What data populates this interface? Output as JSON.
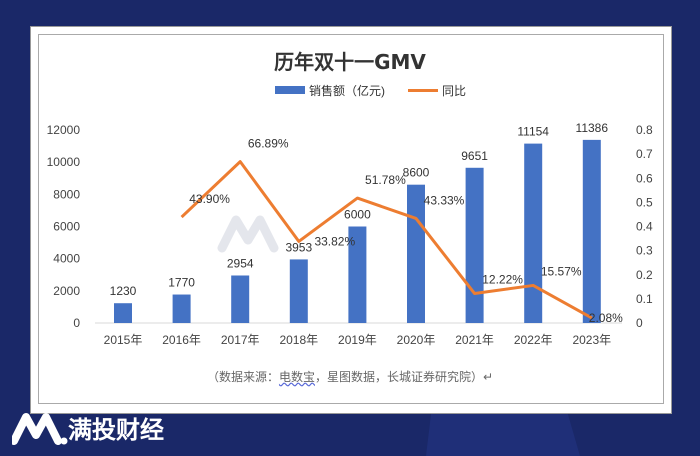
{
  "chart_data": {
    "type": "bar+line",
    "title": "历年双十一GMV",
    "categories": [
      "2015年",
      "2016年",
      "2017年",
      "2018年",
      "2019年",
      "2020年",
      "2021年",
      "2022年",
      "2023年"
    ],
    "series": [
      {
        "name": "销售额（亿元)",
        "type": "bar",
        "axis": "left",
        "color": "#4472c4",
        "values": [
          1230,
          1770,
          2954,
          3953,
          6000,
          8600,
          9651,
          11154,
          11386
        ],
        "labels": [
          "1230",
          "1770",
          "2954",
          "3953",
          "6000",
          "8600",
          "9651",
          "11154",
          "11386"
        ]
      },
      {
        "name": "同比",
        "type": "line",
        "axis": "right",
        "color": "#ed7d31",
        "values": [
          null,
          0.439,
          0.6689,
          0.3382,
          0.5178,
          0.4333,
          0.1222,
          0.1557,
          0.0208
        ],
        "labels": [
          "",
          "43.90%",
          "66.89%",
          "33.82%",
          "51.78%",
          "43.33%",
          "12.22%",
          "15.57%",
          "2.08%"
        ]
      }
    ],
    "left_axis": {
      "ylim": [
        0,
        12000
      ],
      "ticks": [
        "0",
        "2000",
        "4000",
        "6000",
        "8000",
        "10000",
        "12000"
      ]
    },
    "right_axis": {
      "ylim": [
        0,
        0.8
      ],
      "ticks": [
        "0",
        "0.1",
        "0.2",
        "0.3",
        "0.4",
        "0.5",
        "0.6",
        "0.7",
        "0.8"
      ]
    },
    "legend": "top",
    "grid": false
  },
  "source_prefix": "（数据来源：",
  "source_underlined": "电数宝",
  "source_suffix": "，星图数据，长城证券研究院）↵",
  "watermark": "满投财经",
  "brand": {
    "name": "满投财经"
  }
}
